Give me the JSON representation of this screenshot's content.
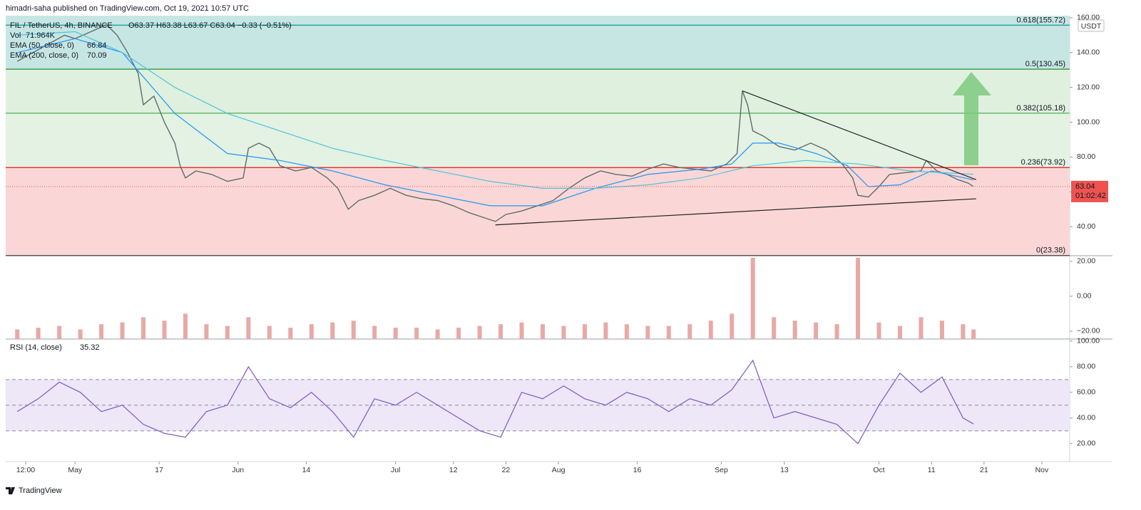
{
  "header": {
    "text": "himadri-saha published on TradingView.com, Oct 19, 2021 10:57 UTC"
  },
  "footer": {
    "brand": "TradingView"
  },
  "chart_data": [
    {
      "type": "line",
      "ohlc": "O63.37 H63.38 L63.67 C63.04 −0.33 (−0.51%)",
      "xlim": [
        107.8,
        310.3
      ],
      "ylim": [
        23.3,
        161.2
      ],
      "currency": "USDT",
      "countdown": "01:02:42",
      "last_price": 63.04,
      "last_price_color": "#ef5350",
      "yticks": [
        {
          "value": 40,
          "label": "40.00"
        },
        {
          "value": 60,
          "label": "60.00"
        },
        {
          "value": 80,
          "label": "80.00"
        },
        {
          "value": 100,
          "label": "100.00"
        },
        {
          "value": 120,
          "label": "120.00"
        },
        {
          "value": 140,
          "label": "140.00"
        },
        {
          "value": 160,
          "label": "160.00"
        }
      ],
      "fib_levels": [
        {
          "label": "0.618(155.72)",
          "value": 155.72,
          "color": "#26a69a",
          "fill": "#c6e6e4"
        },
        {
          "label": "0.5(130.45)",
          "value": 130.45,
          "color": "#43a047",
          "fill": "#c6e6e4"
        },
        {
          "label": "0.382(105.18)",
          "value": 105.18,
          "color": "#66bb6a",
          "fill": "#dff0df"
        },
        {
          "label": "0.236(73.92)",
          "value": 73.92,
          "color": "#e53935",
          "fill": "#e3f2e3"
        },
        {
          "label": "0(23.38)",
          "value": 23.38,
          "color": "#555555",
          "fill": "#fad7d6"
        }
      ],
      "trendlines": [
        {
          "x": [
            248,
            292.5
          ],
          "y": [
            118,
            67
          ]
        },
        {
          "x": [
            201,
            292.5
          ],
          "y": [
            41,
            56
          ]
        }
      ],
      "series": [
        {
          "name": "FIL / TetherUS, 4h, BINANCE",
          "color": "#5d6d6b",
          "x": [
            110,
            113,
            116,
            119,
            121,
            124,
            127,
            129,
            131,
            133,
            134,
            136,
            138,
            140,
            141,
            142,
            144,
            147,
            150,
            153,
            154,
            156,
            158,
            160,
            163,
            166,
            169,
            171,
            173,
            175,
            178,
            181,
            184,
            187,
            190,
            193,
            196,
            199,
            201,
            203,
            206,
            209,
            212,
            215,
            218,
            221,
            224,
            227,
            230,
            233,
            236,
            239,
            242,
            245,
            247,
            248,
            249,
            250,
            252,
            255,
            258,
            261,
            264,
            267,
            269,
            270,
            272,
            274,
            276,
            279,
            282,
            283,
            285,
            287,
            289,
            291,
            292
          ],
          "values": [
            135,
            140,
            145,
            150,
            148,
            152,
            156,
            150,
            140,
            128,
            110,
            115,
            100,
            88,
            75,
            68,
            72,
            70,
            66,
            68,
            85,
            88,
            85,
            75,
            72,
            74,
            68,
            62,
            50,
            55,
            58,
            62,
            58,
            56,
            55,
            52,
            48,
            45,
            43,
            47,
            49,
            52,
            55,
            62,
            68,
            72,
            70,
            69,
            73,
            76,
            74,
            73,
            72,
            76,
            82,
            118,
            110,
            95,
            92,
            86,
            84,
            88,
            84,
            76,
            68,
            58,
            57,
            63,
            70,
            71,
            72,
            78,
            72,
            70,
            67,
            65,
            63.04
          ]
        },
        {
          "name": "EMA (50, close, 0)",
          "legend_value": 66.84,
          "color": "#2196f3",
          "x": [
            110,
            121,
            130,
            140,
            150,
            160,
            170,
            180,
            190,
            200,
            210,
            220,
            230,
            240,
            246,
            250,
            255,
            262,
            268,
            272,
            278,
            284,
            292
          ],
          "values": [
            140,
            148,
            140,
            105,
            82,
            78,
            72,
            64,
            58,
            52,
            52,
            62,
            70,
            73,
            76,
            88,
            88,
            82,
            75,
            63,
            64,
            72,
            66.84
          ]
        },
        {
          "name": "EMA (200, close, 0)",
          "legend_value": 70.09,
          "color": "#4fc3dc",
          "x": [
            110,
            121,
            130,
            140,
            150,
            160,
            170,
            180,
            190,
            200,
            210,
            220,
            230,
            240,
            250,
            260,
            270,
            280,
            292
          ],
          "values": [
            150,
            152,
            140,
            120,
            105,
            95,
            85,
            78,
            72,
            66,
            62,
            62,
            64,
            68,
            75,
            78,
            76,
            72,
            70.09
          ]
        }
      ]
    },
    {
      "type": "bar",
      "name": "Vol",
      "legend_value_label": "71.964K",
      "color": "#e8a9a5",
      "xlim": [
        107.8,
        310.3
      ],
      "ylim": [
        -24.5,
        23.2
      ],
      "yticks": [
        {
          "value": 20,
          "label": "20.00"
        },
        {
          "value": 0,
          "label": "0.00"
        },
        {
          "value": -20,
          "label": "−20.00"
        }
      ],
      "x": [
        110,
        114,
        118,
        122,
        126,
        130,
        134,
        138,
        142,
        146,
        150,
        154,
        158,
        162,
        166,
        170,
        174,
        178,
        182,
        186,
        190,
        194,
        198,
        202,
        206,
        210,
        214,
        218,
        222,
        226,
        230,
        234,
        238,
        242,
        246,
        250,
        254,
        258,
        262,
        266,
        270,
        274,
        278,
        282,
        286,
        290,
        292
      ],
      "values": [
        -19,
        -18,
        -17,
        -19,
        -16,
        -15,
        -12,
        -14,
        -10,
        -16,
        -17,
        -12,
        -17,
        -18,
        -16,
        -15,
        -14,
        -17,
        -18,
        -18,
        -19,
        -18,
        -17,
        -16,
        -15,
        -16,
        -17,
        -16,
        -15,
        -16,
        -17,
        -17,
        -16,
        -14,
        -10,
        22,
        -12,
        -14,
        -15,
        -16,
        22,
        -15,
        -17,
        -12,
        -14,
        -16,
        -19
      ]
    },
    {
      "type": "line",
      "xlim": [
        107.8,
        310.3
      ],
      "ylim": [
        6,
        101.6
      ],
      "bands": [
        30,
        50,
        70
      ],
      "band_fill": "#ede7f8",
      "yticks": [
        {
          "value": 20,
          "label": "20.00"
        },
        {
          "value": 40,
          "label": "40.00"
        },
        {
          "value": 60,
          "label": "60.00"
        },
        {
          "value": 80,
          "label": "80.00"
        },
        {
          "value": 100,
          "label": "100.00"
        }
      ],
      "xticks": [
        {
          "value": 111.6,
          "label": "12:00"
        },
        {
          "value": 121,
          "label": "May"
        },
        {
          "value": 137,
          "label": "17"
        },
        {
          "value": 152,
          "label": "Jun"
        },
        {
          "value": 165,
          "label": "14"
        },
        {
          "value": 182,
          "label": "Jul"
        },
        {
          "value": 193,
          "label": "12"
        },
        {
          "value": 203,
          "label": "22"
        },
        {
          "value": 213,
          "label": "Aug"
        },
        {
          "value": 228,
          "label": "16"
        },
        {
          "value": 244,
          "label": "Sep"
        },
        {
          "value": 256,
          "label": "13"
        },
        {
          "value": 274,
          "label": "Oct"
        },
        {
          "value": 284,
          "label": "11"
        },
        {
          "value": 294,
          "label": "21"
        },
        {
          "value": 305,
          "label": "Nov"
        }
      ],
      "series": [
        {
          "name": "RSI (14, close)",
          "legend_value": 35.32,
          "color": "#7e57c2",
          "x": [
            110,
            114,
            118,
            122,
            126,
            130,
            134,
            138,
            142,
            146,
            150,
            154,
            158,
            162,
            166,
            170,
            174,
            178,
            182,
            186,
            190,
            194,
            198,
            202,
            206,
            210,
            214,
            218,
            222,
            226,
            230,
            234,
            238,
            242,
            246,
            250,
            254,
            258,
            262,
            266,
            270,
            274,
            278,
            282,
            286,
            290,
            292
          ],
          "values": [
            45,
            55,
            68,
            60,
            45,
            50,
            35,
            28,
            25,
            45,
            50,
            80,
            55,
            48,
            60,
            45,
            25,
            55,
            50,
            60,
            50,
            40,
            30,
            25,
            60,
            55,
            65,
            55,
            50,
            60,
            55,
            45,
            55,
            50,
            62,
            85,
            40,
            45,
            40,
            35,
            20,
            50,
            75,
            60,
            72,
            40,
            35.32
          ]
        }
      ]
    }
  ]
}
